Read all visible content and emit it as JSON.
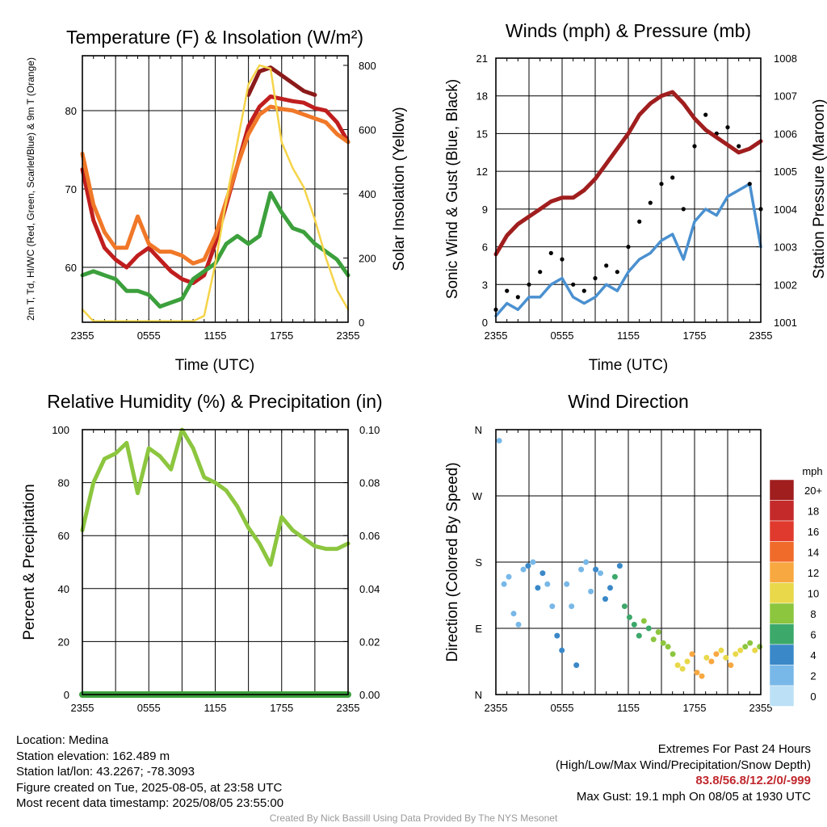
{
  "chart_data": [
    {
      "type": "line",
      "title": "Temperature (F) & Insolation (W/m²)",
      "xlabel": "Time (UTC)",
      "ylabel": "2m T, Td, HI/WC (Red, Green, Scarlet/Blue) & 9m T (Orange)",
      "y2label": "Solar Insolation (Yellow)",
      "x_ticks": [
        "2355",
        "0555",
        "1155",
        "1755",
        "2355"
      ],
      "y_ticks": [
        "60",
        "70",
        "80"
      ],
      "y2_ticks": [
        "0",
        "200",
        "400",
        "600",
        "800"
      ],
      "ylim": [
        53,
        87
      ],
      "y2lim": [
        0,
        830
      ],
      "x_hours": [
        0,
        1,
        2,
        3,
        4,
        5,
        6,
        7,
        8,
        9,
        10,
        11,
        12,
        13,
        14,
        15,
        16,
        17,
        18,
        19,
        20,
        21,
        22,
        23,
        24
      ],
      "series": [
        {
          "color": "#c01e1e",
          "axis": "left",
          "values": [
            72.5,
            66,
            62.5,
            61,
            60,
            61.5,
            62.5,
            61,
            59.5,
            58.5,
            58,
            59,
            63,
            68,
            73,
            78,
            80.5,
            81.8,
            81.5,
            81.2,
            81,
            80.3,
            80,
            78.5,
            76
          ]
        },
        {
          "color": "#8b1a1a",
          "axis": "left",
          "values": [
            null,
            null,
            null,
            null,
            null,
            null,
            null,
            null,
            null,
            null,
            null,
            null,
            null,
            null,
            null,
            82,
            85,
            85.5,
            84.5,
            83.5,
            82.5,
            82,
            null,
            null,
            null
          ]
        },
        {
          "color": "#f07828",
          "axis": "left",
          "values": [
            74.5,
            68,
            64.5,
            62.5,
            62.5,
            66.5,
            63,
            62,
            62,
            61.5,
            60.5,
            61,
            64,
            68.5,
            73,
            77,
            79.5,
            80.5,
            80.2,
            80,
            79.5,
            79,
            78.5,
            77,
            76
          ]
        },
        {
          "color": "#3ca03c",
          "axis": "left",
          "values": [
            59,
            59.5,
            59,
            58.5,
            57,
            57,
            56.5,
            55,
            55.5,
            56,
            58.5,
            59.5,
            60.5,
            63,
            64,
            63,
            64,
            69.5,
            67,
            65,
            64.5,
            63,
            62,
            61,
            59
          ]
        },
        {
          "color": "#f5d44a",
          "axis": "right",
          "values": [
            40,
            3,
            3,
            3,
            3,
            3,
            3,
            3,
            3,
            3,
            3,
            20,
            180,
            380,
            560,
            740,
            800,
            790,
            560,
            480,
            420,
            320,
            200,
            100,
            40
          ]
        }
      ]
    },
    {
      "type": "scatter",
      "title": "Winds (mph) & Pressure (mb)",
      "xlabel": "Time (UTC)",
      "ylabel": "Sonic Wind & Gust (Blue, Black)",
      "y2label": "Station Pressure (Maroon)",
      "x_ticks": [
        "2355",
        "0555",
        "1155",
        "1755",
        "2355"
      ],
      "y_ticks": [
        "0",
        "3",
        "6",
        "9",
        "12",
        "15",
        "18",
        "21"
      ],
      "y2_ticks": [
        "1001",
        "1002",
        "1003",
        "1004",
        "1005",
        "1006",
        "1007",
        "1008"
      ],
      "ylim": [
        0,
        21
      ],
      "y2lim": [
        1001,
        1008
      ],
      "x_hours": [
        0,
        1,
        2,
        3,
        4,
        5,
        6,
        7,
        8,
        9,
        10,
        11,
        12,
        13,
        14,
        15,
        16,
        17,
        18,
        19,
        20,
        21,
        22,
        23,
        24
      ],
      "series": [
        {
          "name": "",
          "color": "#4a90d0",
          "kind": "line",
          "axis": "left",
          "values": [
            0.5,
            1.5,
            1,
            2,
            2,
            3,
            3.5,
            2,
            1.5,
            2,
            3,
            2.5,
            4,
            5,
            5.5,
            6.5,
            7,
            5,
            8,
            9,
            8.5,
            10,
            10.5,
            11,
            6
          ]
        },
        {
          "name": "",
          "color": "#000000",
          "kind": "points",
          "axis": "left",
          "values": [
            1,
            2.5,
            2,
            3,
            4,
            5.5,
            5,
            3,
            2.5,
            3.5,
            4.5,
            4,
            6,
            8,
            9.5,
            11,
            11.5,
            9,
            14,
            16.5,
            15,
            15.5,
            14,
            11,
            9
          ]
        },
        {
          "name": "",
          "color": "#a01e1e",
          "kind": "line",
          "axis": "right",
          "values": [
            1002.8,
            1003.3,
            1003.6,
            1003.8,
            1004,
            1004.2,
            1004.3,
            1004.3,
            1004.5,
            1004.8,
            1005.2,
            1005.6,
            1006,
            1006.5,
            1006.8,
            1007,
            1007.1,
            1006.8,
            1006.4,
            1006.1,
            1005.9,
            1005.7,
            1005.5,
            1005.6,
            1005.8
          ]
        }
      ]
    },
    {
      "type": "line",
      "title": "Relative Humidity (%) & Precipitation (in)",
      "xlabel": "",
      "ylabel": "Percent & Precipitation",
      "x_ticks": [
        "2355",
        "0555",
        "1155",
        "1755",
        "2355"
      ],
      "y_ticks": [
        "0",
        "20",
        "40",
        "60",
        "80",
        "100"
      ],
      "y2_ticks": [
        "0.00",
        "0.02",
        "0.04",
        "0.06",
        "0.08",
        "0.10"
      ],
      "ylim": [
        0,
        100
      ],
      "y2lim": [
        0,
        0.1
      ],
      "x_hours": [
        0,
        1,
        2,
        3,
        4,
        5,
        6,
        7,
        8,
        9,
        10,
        11,
        12,
        13,
        14,
        15,
        16,
        17,
        18,
        19,
        20,
        21,
        22,
        23,
        24
      ],
      "series": [
        {
          "color": "#8cc63f",
          "axis": "left",
          "values": [
            62,
            80,
            89,
            91,
            95,
            76,
            93,
            90,
            85,
            100,
            93,
            82,
            80,
            77,
            71,
            63,
            57,
            49,
            67,
            62,
            59,
            56,
            55,
            55,
            57
          ]
        },
        {
          "color": "#3ca03c",
          "axis": "right",
          "values": [
            0,
            0,
            0,
            0,
            0,
            0,
            0,
            0,
            0,
            0,
            0,
            0,
            0,
            0,
            0,
            0,
            0,
            0,
            0,
            0,
            0,
            0,
            0,
            0,
            0
          ]
        }
      ]
    },
    {
      "type": "scatter",
      "title": "Wind Direction",
      "xlabel": "",
      "ylabel": "Direction (Colored By Speed)",
      "x_ticks": [
        "2355",
        "0555",
        "1155",
        "1755",
        "2355"
      ],
      "y_ticks": [
        "N",
        "E",
        "S",
        "W",
        "N"
      ],
      "ylim": [
        0,
        360
      ],
      "colorbar_unit": "mph",
      "colorbar_labels": [
        "20+",
        "18",
        "16",
        "14",
        "12",
        "10",
        "8",
        "6",
        "4",
        "2",
        "0"
      ],
      "colorbar_colors": [
        "#a01e1e",
        "#c42a2a",
        "#e03a2e",
        "#f06a2a",
        "#f8a840",
        "#e8d84a",
        "#8cc63f",
        "#3ca86a",
        "#3a88c8",
        "#78b8e8",
        "#bce0f6"
      ],
      "points_direction_deg": [
        345,
        150,
        160,
        110,
        95,
        170,
        175,
        180,
        145,
        165,
        150,
        120,
        80,
        60,
        150,
        120,
        40,
        170,
        180,
        140,
        170,
        165,
        130,
        145,
        160,
        175,
        120,
        105,
        95,
        80,
        100,
        90,
        75,
        85,
        70,
        65,
        55,
        40,
        35,
        45,
        55,
        30,
        25,
        50,
        45,
        55,
        60,
        50,
        40,
        55,
        60,
        65,
        70,
        60,
        65
      ],
      "points_speed_mph": [
        1,
        1,
        2,
        1,
        1,
        2,
        3,
        2,
        3,
        3,
        2,
        1,
        3,
        4,
        2,
        1,
        3,
        2,
        1,
        2,
        3,
        1,
        4,
        4,
        5,
        4,
        5,
        6,
        6,
        5,
        7,
        6,
        7,
        8,
        8,
        7,
        8,
        9,
        10,
        10,
        11,
        12,
        11,
        10,
        12,
        11,
        9,
        10,
        11,
        10,
        9,
        8,
        8,
        9,
        7
      ]
    }
  ],
  "info": {
    "location": "Location: Medina",
    "elevation": "Station elevation: 162.489 m",
    "latlon": "Station lat/lon: 43.2267; -78.3093",
    "created": "Figure created on Tue, 2025-08-05, at 23:58 UTC",
    "recent": "Most recent data timestamp: 2025/08/05 23:55:00"
  },
  "extremes": {
    "title": "Extremes For Past 24 Hours",
    "legend": "(High/Low/Max Wind/Precipitation/Snow Depth)",
    "values": "83.8/56.8/12.2/0/-999",
    "gust": "Max Gust: 19.1 mph On 08/05 at 1930 UTC"
  },
  "footer": "Created By Nick Bassill Using Data Provided By The NYS Mesonet"
}
